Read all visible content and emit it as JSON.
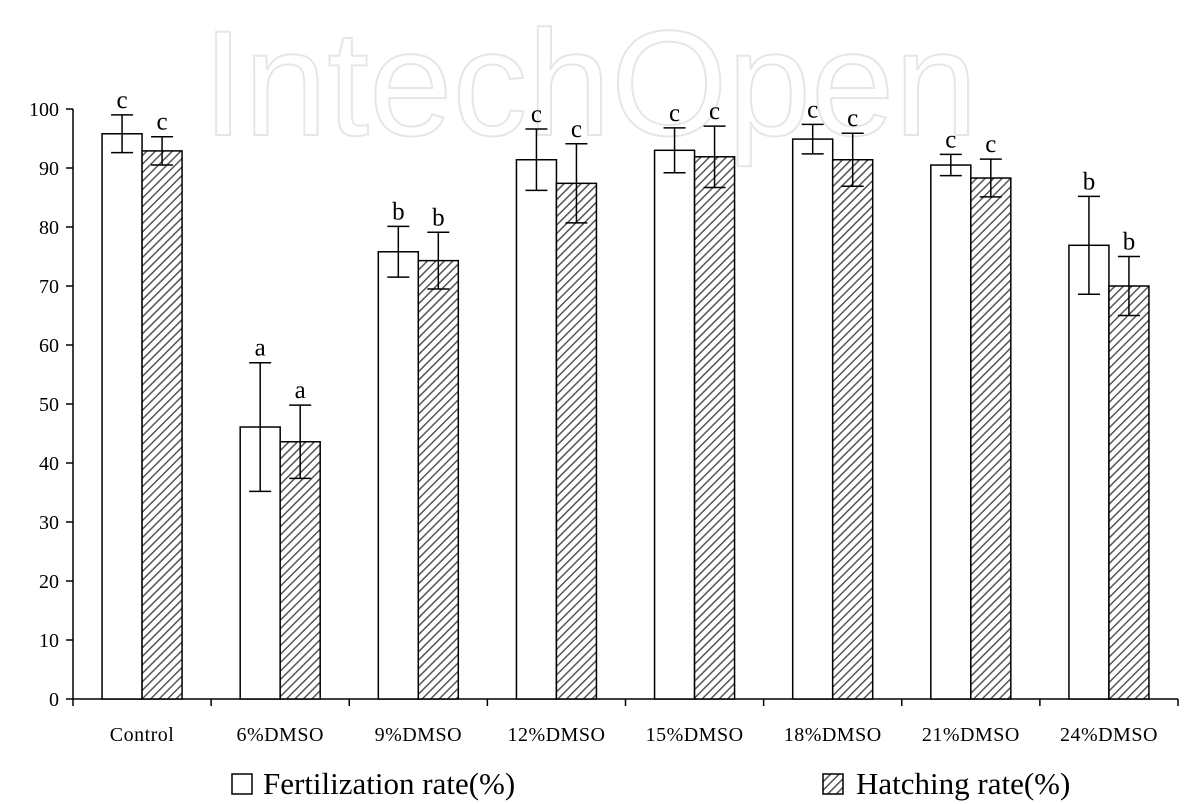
{
  "watermark": "IntechOpen",
  "chart_data": {
    "type": "bar",
    "categories": [
      "Control",
      "6%DMSO",
      "9%DMSO",
      "12%DMSO",
      "15%DMSO",
      "18%DMSO",
      "21%DMSO",
      "24%DMSO"
    ],
    "ylim": [
      0,
      100
    ],
    "yticks": [
      0,
      10,
      20,
      30,
      40,
      50,
      60,
      70,
      80,
      90,
      100
    ],
    "xlabel": "",
    "ylabel": "",
    "legend_position": "bottom",
    "grid": false,
    "series": [
      {
        "name": "Fertilization rate(%)",
        "pattern": "open",
        "values": [
          95.8,
          46.1,
          75.8,
          91.4,
          93.0,
          94.9,
          90.5,
          76.9
        ],
        "errors": [
          3.2,
          10.9,
          4.3,
          5.2,
          3.8,
          2.5,
          1.8,
          8.3
        ],
        "significance": [
          "c",
          "a",
          "b",
          "c",
          "c",
          "c",
          "c",
          "b"
        ]
      },
      {
        "name": "Hatching rate(%)",
        "pattern": "diagonal-hatch",
        "values": [
          92.9,
          43.6,
          74.3,
          87.4,
          91.9,
          91.4,
          88.3,
          70.0
        ],
        "errors": [
          2.4,
          6.2,
          4.8,
          6.7,
          5.2,
          4.5,
          3.2,
          5.0
        ],
        "significance": [
          "c",
          "a",
          "b",
          "c",
          "c",
          "c",
          "c",
          "b"
        ]
      }
    ]
  },
  "colors": {
    "axis": "#000000",
    "bar_fill_open": "#ffffff",
    "hatch_stroke": "#555555"
  }
}
